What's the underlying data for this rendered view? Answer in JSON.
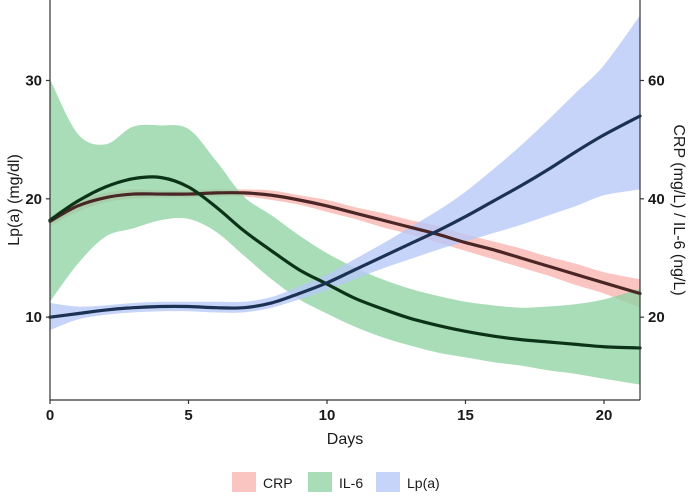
{
  "chart_data": {
    "type": "line",
    "title": "",
    "xlabel": "Days",
    "ylabel_left": "Lp(a) (mg/dl)",
    "ylabel_right": "CRP (mg/L) / IL-6 (ng/L)",
    "xlim": [
      0,
      21.3
    ],
    "ylim_left": [
      3,
      36.8
    ],
    "ylim_right": [
      6,
      73.6
    ],
    "x_ticks": [
      0,
      5,
      10,
      15,
      20
    ],
    "y_ticks_left": [
      10,
      20,
      30
    ],
    "y_ticks_right": [
      20,
      40,
      60
    ],
    "legend_position": "bottom",
    "series": [
      {
        "name": "CRP",
        "axis": "right",
        "color": "#f8b4b0",
        "line_color": "#4a2626",
        "x": [
          0,
          1,
          2,
          3,
          4,
          5,
          6,
          7,
          8,
          9,
          10,
          11,
          12,
          13,
          14,
          15,
          16,
          17,
          18,
          19,
          20,
          21.3
        ],
        "y": [
          36.2,
          38.8,
          40.2,
          40.8,
          40.8,
          40.8,
          41.0,
          41.0,
          40.6,
          39.8,
          38.8,
          37.6,
          36.4,
          35.2,
          34.0,
          32.6,
          31.4,
          30.0,
          28.6,
          27.2,
          25.8,
          24.0
        ],
        "lower": [
          35.4,
          37.8,
          39.4,
          40.0,
          40.2,
          40.2,
          40.4,
          40.4,
          39.8,
          39.0,
          37.8,
          36.6,
          35.2,
          34.0,
          32.6,
          31.2,
          29.8,
          28.4,
          27.0,
          25.4,
          24.0,
          21.6
        ],
        "upper": [
          37.0,
          39.8,
          41.0,
          41.6,
          41.4,
          41.4,
          41.6,
          41.6,
          41.4,
          40.6,
          39.8,
          38.6,
          37.6,
          36.4,
          35.4,
          34.0,
          32.8,
          31.6,
          30.2,
          29.0,
          27.6,
          26.4
        ]
      },
      {
        "name": "IL-6",
        "axis": "right",
        "color": "#8fd4a4",
        "line_color": "#0c3318",
        "x": [
          0,
          1,
          2,
          3,
          4,
          5,
          6,
          7,
          8,
          9,
          10,
          11,
          12,
          13,
          14,
          15,
          16,
          17,
          18,
          19,
          20,
          21.3
        ],
        "y": [
          36.4,
          39.6,
          42.0,
          43.4,
          43.6,
          42.0,
          38.6,
          34.6,
          31.2,
          28.0,
          25.6,
          23.2,
          21.4,
          19.8,
          18.6,
          17.6,
          16.8,
          16.2,
          15.8,
          15.4,
          15.0,
          14.8
        ],
        "lower": [
          22.6,
          29.0,
          33.6,
          35.0,
          36.4,
          36.6,
          34.4,
          30.4,
          26.4,
          23.0,
          20.6,
          18.4,
          16.6,
          15.2,
          14.0,
          13.2,
          12.4,
          11.8,
          11.0,
          10.4,
          9.6,
          8.6
        ],
        "upper": [
          60.2,
          51.0,
          49.2,
          52.2,
          52.4,
          51.8,
          46.4,
          40.4,
          37.2,
          33.8,
          30.8,
          28.4,
          26.4,
          24.8,
          23.6,
          22.6,
          22.0,
          21.6,
          21.8,
          22.2,
          23.0,
          24.8
        ]
      },
      {
        "name": "Lp(a)",
        "axis": "left",
        "color": "#b7c8f8",
        "line_color": "#1b3254",
        "x": [
          0,
          1,
          2,
          3,
          4,
          5,
          6,
          7,
          8,
          9,
          10,
          11,
          12,
          13,
          14,
          15,
          16,
          17,
          18,
          19,
          20,
          21.3
        ],
        "y": [
          10.0,
          10.3,
          10.6,
          10.8,
          10.9,
          10.9,
          10.8,
          10.8,
          11.2,
          12.0,
          12.9,
          14.0,
          15.1,
          16.2,
          17.3,
          18.5,
          19.8,
          21.1,
          22.5,
          24.0,
          25.4,
          27.0
        ],
        "lower": [
          8.9,
          9.8,
          10.2,
          10.4,
          10.5,
          10.5,
          10.4,
          10.4,
          10.8,
          11.5,
          12.3,
          13.2,
          14.1,
          14.9,
          15.7,
          16.4,
          17.1,
          17.8,
          18.6,
          19.4,
          20.3,
          20.8
        ],
        "upper": [
          11.2,
          10.9,
          11.0,
          11.2,
          11.3,
          11.3,
          11.3,
          11.3,
          11.7,
          12.6,
          13.6,
          14.9,
          16.2,
          17.6,
          19.0,
          20.6,
          22.5,
          24.5,
          26.7,
          29.0,
          31.3,
          35.5
        ]
      }
    ]
  }
}
